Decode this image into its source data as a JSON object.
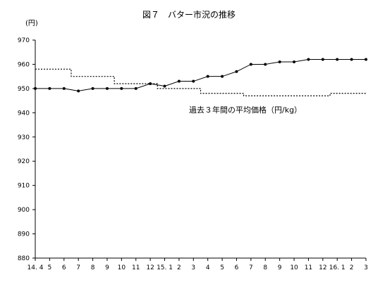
{
  "chart_data": {
    "type": "line",
    "title": "図７　バター市況の推移",
    "ylabel": "(円)",
    "ylim": [
      880,
      970
    ],
    "yticks": [
      880,
      890,
      900,
      910,
      920,
      930,
      940,
      950,
      960,
      970
    ],
    "grid": false,
    "x": [
      "14. 4",
      "5",
      "6",
      "7",
      "8",
      "9",
      "10",
      "11",
      "12",
      "15. 1",
      "2",
      "3",
      "4",
      "5",
      "6",
      "7",
      "8",
      "9",
      "10",
      "11",
      "12",
      "16. 1",
      "2",
      "3"
    ],
    "series": [
      {
        "style": "solid-with-markers",
        "color": "#000000",
        "values": [
          950,
          950,
          950,
          949,
          950,
          950,
          950,
          950,
          952,
          951,
          953,
          953,
          955,
          955,
          957,
          960,
          960,
          961,
          961,
          962,
          962,
          962,
          962,
          962
        ]
      },
      {
        "name": "過去３年間の平均価格（円/kg）",
        "style": "dotted-step",
        "color": "#000000",
        "values": [
          958,
          958,
          958,
          955,
          955,
          955,
          952,
          952,
          952,
          950,
          950,
          950,
          948,
          948,
          948,
          947,
          947,
          947,
          947,
          947,
          947,
          948,
          948,
          948
        ]
      }
    ],
    "annotation": "過去３年間の平均価格（円/kg）"
  }
}
